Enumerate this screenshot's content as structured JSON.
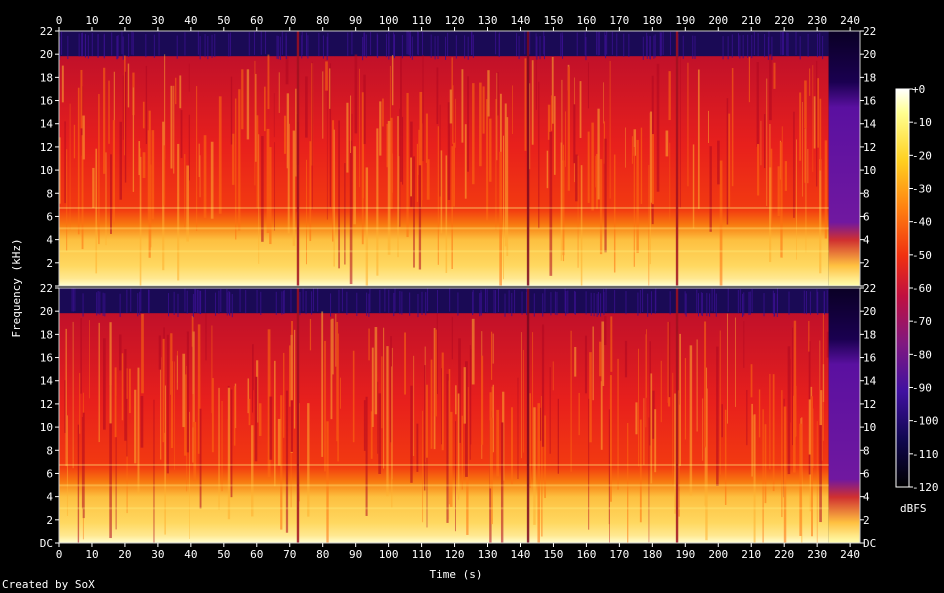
{
  "chart_data": {
    "type": "heatmap",
    "title": "",
    "xlabel": "Time (s)",
    "ylabel": "Frequency (kHz)",
    "xlim": [
      0,
      243
    ],
    "ylim": [
      0,
      22
    ],
    "x_ticks": [
      "0",
      "10",
      "20",
      "30",
      "40",
      "50",
      "60",
      "70",
      "80",
      "90",
      "100",
      "110",
      "120",
      "130",
      "140",
      "150",
      "160",
      "170",
      "180",
      "190",
      "200",
      "210",
      "220",
      "230",
      "240"
    ],
    "y_ticks": [
      "DC",
      "2",
      "4",
      "6",
      "8",
      "10",
      "12",
      "14",
      "16",
      "18",
      "20",
      "22"
    ],
    "channels": [
      {
        "name": "",
        "bandwidth_khz": 20,
        "silence_dips_s": [
          72.5,
          142.3,
          187.5
        ]
      },
      {
        "name": "",
        "bandwidth_khz": 20,
        "silence_dips_s": [
          72.5,
          142.3,
          187.5
        ]
      }
    ],
    "colorbar": {
      "label": "dBFS",
      "ticks": [
        "+0",
        "-10",
        "-20",
        "-30",
        "-40",
        "-50",
        "-60",
        "-70",
        "-80",
        "-90",
        "-100",
        "-110",
        "-120"
      ],
      "range": [
        -120,
        0
      ]
    },
    "colors": {
      "hot": "#ffff80",
      "mid": "#f02a10",
      "cold": "#2a0070"
    },
    "credit": "Created by SoX"
  }
}
